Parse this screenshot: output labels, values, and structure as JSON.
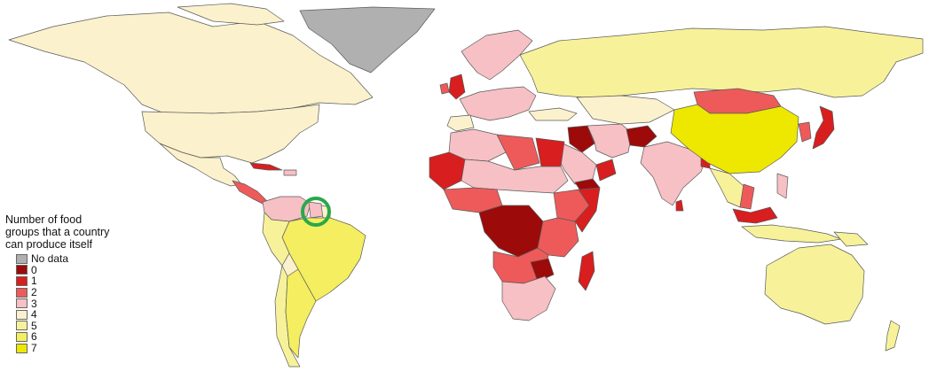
{
  "legend": {
    "title_lines": [
      "Number of food",
      "groups that a country",
      "can produce itself"
    ],
    "items": [
      {
        "label": "No data",
        "color": "#b0b0b0"
      },
      {
        "label": "0",
        "color": "#9c0a0a"
      },
      {
        "label": "1",
        "color": "#d81e1e"
      },
      {
        "label": "2",
        "color": "#ee5a5a"
      },
      {
        "label": "3",
        "color": "#f6c0c4"
      },
      {
        "label": "4",
        "color": "#fbf1cc"
      },
      {
        "label": "5",
        "color": "#f7f29a"
      },
      {
        "label": "6",
        "color": "#f4ee60"
      },
      {
        "label": "7",
        "color": "#eee700"
      }
    ]
  },
  "highlight": {
    "marker": "green-circle",
    "country": "Guyana",
    "color": "#2aa84a"
  },
  "colors": {
    "border": "#5a5a5a",
    "ocean": "#ffffff"
  }
}
